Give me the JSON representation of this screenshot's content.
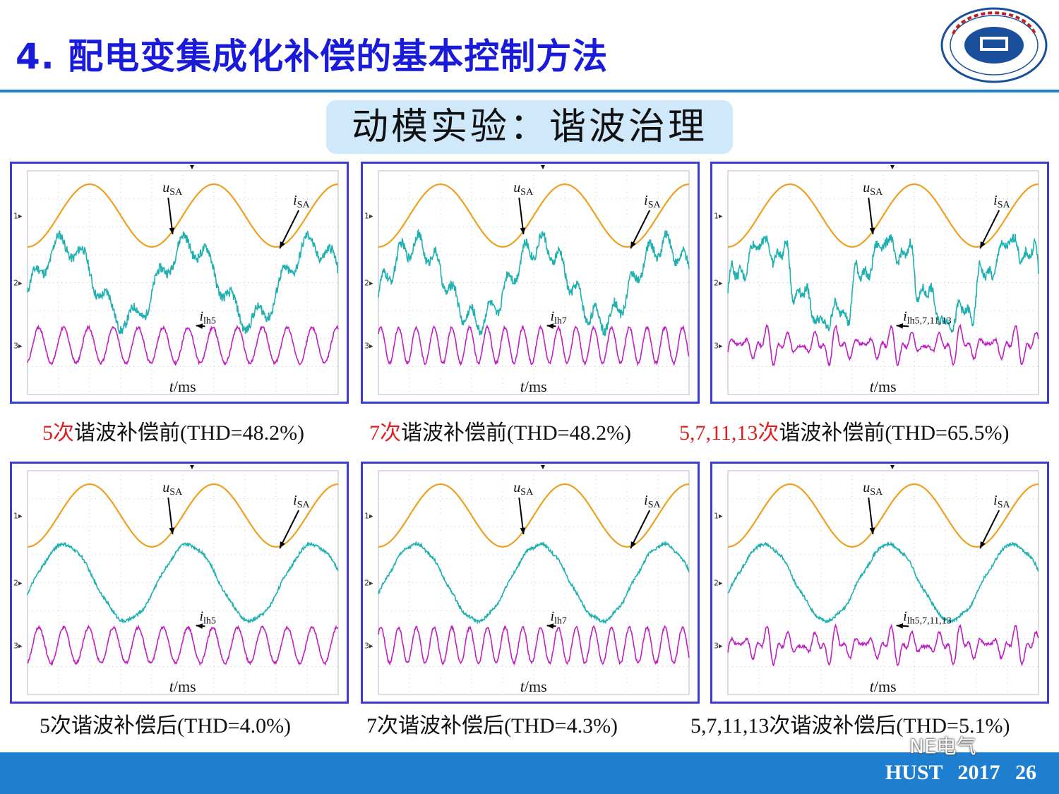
{
  "header": {
    "title": "4. 配电变集成化补偿的基本控制方法",
    "logo_icon": "hust-university-seal-icon"
  },
  "subtitle": "动模实验：谐波治理",
  "panels": [
    {
      "id": "p1",
      "labels": {
        "u": "u",
        "u_sub": "SA",
        "i": "i",
        "i_sub": "SA",
        "ih": "i",
        "ih_sub": "lh5",
        "t": "t",
        "t_unit": "/ms"
      },
      "caption": {
        "highlight": "5次",
        "text": "谐波补偿前(THD=48.2%)"
      }
    },
    {
      "id": "p2",
      "labels": {
        "u": "u",
        "u_sub": "SA",
        "i": "i",
        "i_sub": "SA",
        "ih": "i",
        "ih_sub": "lh7",
        "t": "t",
        "t_unit": "/ms"
      },
      "caption": {
        "highlight": "7次",
        "text": "谐波补偿前(THD=48.2%)"
      }
    },
    {
      "id": "p3",
      "labels": {
        "u": "u",
        "u_sub": "SA",
        "i": "i",
        "i_sub": "SA",
        "ih": "i",
        "ih_sub": "lh5,7,11,13",
        "t": "t",
        "t_unit": "/ms"
      },
      "caption": {
        "highlight": "5,7,11,13次",
        "text": "谐波补偿前(THD=65.5%)"
      }
    },
    {
      "id": "p4",
      "labels": {
        "u": "u",
        "u_sub": "SA",
        "i": "i",
        "i_sub": "SA",
        "ih": "i",
        "ih_sub": "lh5",
        "t": "t",
        "t_unit": "/ms"
      },
      "caption": {
        "highlight": "",
        "text": "5次谐波补偿后(THD=4.0%)"
      }
    },
    {
      "id": "p5",
      "labels": {
        "u": "u",
        "u_sub": "SA",
        "i": "i",
        "i_sub": "SA",
        "ih": "i",
        "ih_sub": "lh7",
        "t": "t",
        "t_unit": "/ms"
      },
      "caption": {
        "highlight": "",
        "text": "7次谐波补偿后(THD=4.3%)"
      }
    },
    {
      "id": "p6",
      "labels": {
        "u": "u",
        "u_sub": "SA",
        "i": "i",
        "i_sub": "SA",
        "ih": "i",
        "ih_sub": "lh5,7,11,13",
        "t": "t",
        "t_unit": "/ms"
      },
      "caption": {
        "highlight": "",
        "text": "5,7,11,13次谐波补偿后(THD=5.1%)"
      }
    }
  ],
  "chart_data": [
    {
      "type": "line",
      "panel": "p1",
      "cycles": 2.5,
      "channels": [
        "1",
        "2",
        "3"
      ],
      "series": [
        {
          "name": "uSA",
          "harmonics": []
        },
        {
          "name": "iSA",
          "harmonics": [
            [
              5,
              0.3
            ]
          ]
        },
        {
          "name": "ilh5",
          "harmonics": [
            [
              5,
              1.0
            ]
          ]
        }
      ],
      "thd_percent": 48.2,
      "state": "before"
    },
    {
      "type": "line",
      "panel": "p2",
      "cycles": 2.5,
      "channels": [
        "1",
        "2",
        "3"
      ],
      "series": [
        {
          "name": "uSA",
          "harmonics": []
        },
        {
          "name": "iSA",
          "harmonics": [
            [
              7,
              0.3
            ]
          ]
        },
        {
          "name": "ilh7",
          "harmonics": [
            [
              7,
              1.0
            ]
          ]
        }
      ],
      "thd_percent": 48.2,
      "state": "before"
    },
    {
      "type": "line",
      "panel": "p3",
      "cycles": 2.5,
      "channels": [
        "1",
        "2",
        "3"
      ],
      "series": [
        {
          "name": "uSA",
          "harmonics": []
        },
        {
          "name": "iSA",
          "harmonics": [
            [
              5,
              0.25
            ],
            [
              7,
              0.2
            ],
            [
              11,
              0.15
            ],
            [
              13,
              0.12
            ]
          ]
        },
        {
          "name": "ilh5,7,11,13",
          "harmonics": [
            [
              5,
              0.45
            ],
            [
              7,
              0.35
            ],
            [
              11,
              0.3
            ],
            [
              13,
              0.3
            ]
          ]
        }
      ],
      "thd_percent": 65.5,
      "state": "before"
    },
    {
      "type": "line",
      "panel": "p4",
      "cycles": 2.5,
      "channels": [
        "1",
        "2",
        "3"
      ],
      "series": [
        {
          "name": "uSA",
          "harmonics": []
        },
        {
          "name": "iSA",
          "harmonics": [
            [
              5,
              0.03
            ]
          ]
        },
        {
          "name": "ilh5",
          "harmonics": [
            [
              5,
              1.0
            ]
          ]
        }
      ],
      "thd_percent": 4.0,
      "state": "after"
    },
    {
      "type": "line",
      "panel": "p5",
      "cycles": 2.5,
      "channels": [
        "1",
        "2",
        "3"
      ],
      "series": [
        {
          "name": "uSA",
          "harmonics": []
        },
        {
          "name": "iSA",
          "harmonics": [
            [
              7,
              0.03
            ]
          ]
        },
        {
          "name": "ilh7",
          "harmonics": [
            [
              7,
              1.0
            ]
          ]
        }
      ],
      "thd_percent": 4.3,
      "state": "after"
    },
    {
      "type": "line",
      "panel": "p6",
      "cycles": 2.5,
      "channels": [
        "1",
        "2",
        "3"
      ],
      "series": [
        {
          "name": "uSA",
          "harmonics": []
        },
        {
          "name": "iSA",
          "harmonics": [
            [
              5,
              0.03
            ],
            [
              7,
              0.02
            ]
          ]
        },
        {
          "name": "ilh5,7,11,13",
          "harmonics": [
            [
              5,
              0.45
            ],
            [
              7,
              0.35
            ],
            [
              11,
              0.3
            ],
            [
              13,
              0.3
            ]
          ]
        }
      ],
      "thd_percent": 5.1,
      "state": "after"
    }
  ],
  "footer": {
    "text": "HUST 2017    26"
  },
  "watermark": {
    "text": "NE电气"
  },
  "colors": {
    "title": "#1a1adb",
    "rule": "#1e7fd0",
    "subtitle_bg": "#cfe9fb",
    "panel_border": "#3b3bd6",
    "voltage": "#f0a020",
    "current": "#20b0b0",
    "harmonic": "#c020c0",
    "highlight": "#e02020"
  }
}
